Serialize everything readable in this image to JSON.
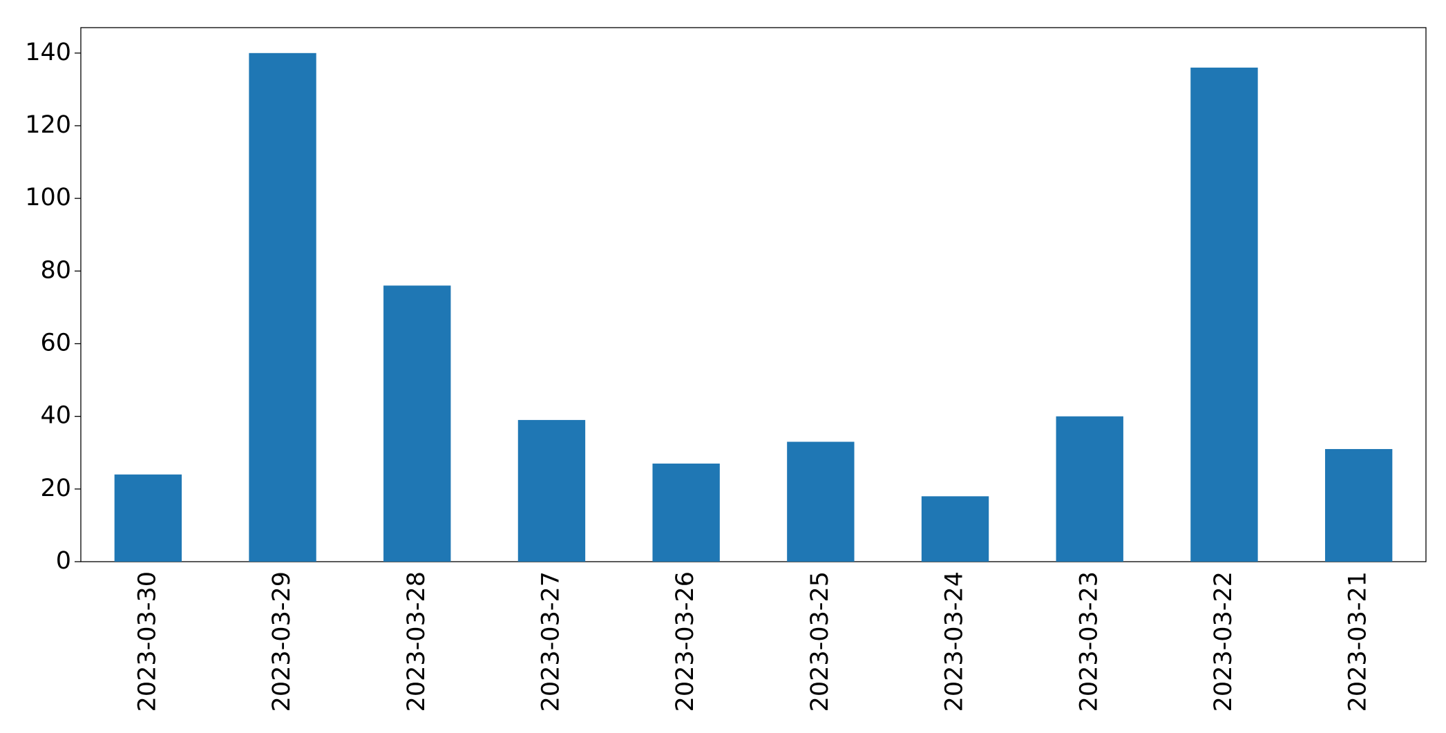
{
  "chart_data": {
    "type": "bar",
    "categories": [
      "2023-03-30",
      "2023-03-29",
      "2023-03-28",
      "2023-03-27",
      "2023-03-26",
      "2023-03-25",
      "2023-03-24",
      "2023-03-23",
      "2023-03-22",
      "2023-03-21"
    ],
    "values": [
      24,
      140,
      76,
      39,
      27,
      33,
      18,
      40,
      136,
      31
    ],
    "color": "#1f77b4",
    "ylim": [
      0,
      147
    ],
    "yticks": [
      0,
      20,
      40,
      60,
      80,
      100,
      120,
      140
    ],
    "grid": false
  }
}
